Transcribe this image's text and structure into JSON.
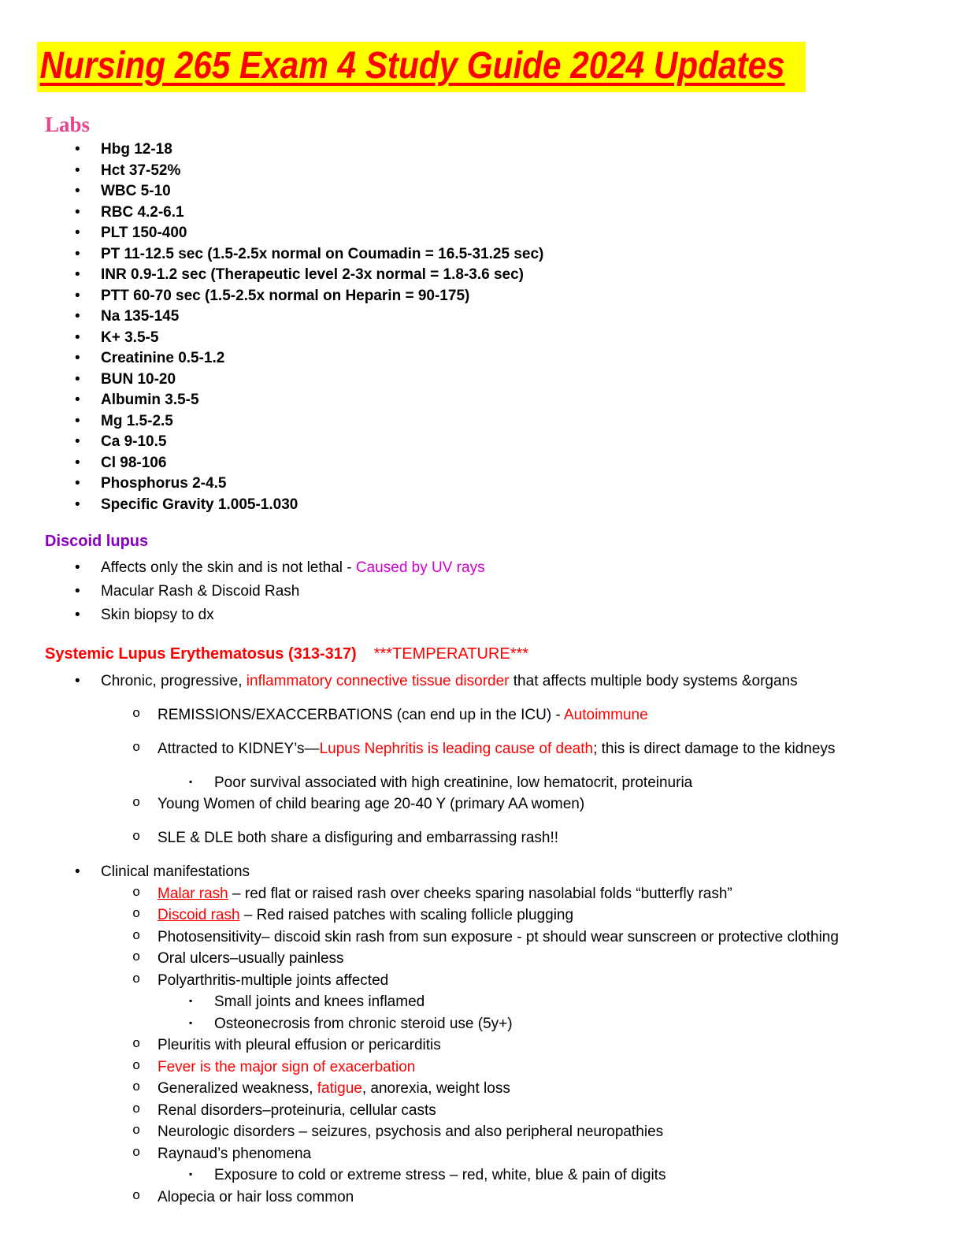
{
  "page": {
    "title": "Nursing 265 Exam 4 Study Guide 2024 Updates"
  },
  "colors": {
    "title_text": "#ff0000",
    "title_highlight": "#ffff00",
    "labs_heading": "#e8468c",
    "discoid_heading": "#8a00be",
    "magenta_accent": "#cc00cc",
    "red_accent": "#ff0000"
  },
  "sections": [
    {
      "id": "labs",
      "heading": [
        {
          "text": "Labs",
          "style": "pink-serif"
        }
      ],
      "items": [
        {
          "level": 1,
          "segments": [
            {
              "text": "Hbg 12-18"
            }
          ]
        },
        {
          "level": 1,
          "segments": [
            {
              "text": "Hct 37-52%"
            }
          ]
        },
        {
          "level": 1,
          "segments": [
            {
              "text": "WBC 5-10"
            }
          ]
        },
        {
          "level": 1,
          "segments": [
            {
              "text": "RBC 4.2-6.1"
            }
          ]
        },
        {
          "level": 1,
          "segments": [
            {
              "text": "PLT 150-400"
            }
          ]
        },
        {
          "level": 1,
          "segments": [
            {
              "text": "PT 11-12.5 sec (1.5-2.5x normal on Coumadin = 16.5-31.25 sec)"
            }
          ]
        },
        {
          "level": 1,
          "segments": [
            {
              "text": "INR 0.9-1.2 sec (Therapeutic level 2-3x normal = 1.8-3.6 sec)"
            }
          ]
        },
        {
          "level": 1,
          "segments": [
            {
              "text": "PTT 60-70 sec (1.5-2.5x normal on Heparin = 90-175)"
            }
          ]
        },
        {
          "level": 1,
          "segments": [
            {
              "text": "Na 135-145"
            }
          ]
        },
        {
          "level": 1,
          "segments": [
            {
              "text": "K+ 3.5-5"
            }
          ]
        },
        {
          "level": 1,
          "segments": [
            {
              "text": "Creatinine 0.5-1.2"
            }
          ]
        },
        {
          "level": 1,
          "segments": [
            {
              "text": "BUN 10-20"
            }
          ]
        },
        {
          "level": 1,
          "segments": [
            {
              "text": "Albumin 3.5-5"
            }
          ]
        },
        {
          "level": 1,
          "segments": [
            {
              "text": "Mg 1.5-2.5"
            }
          ]
        },
        {
          "level": 1,
          "segments": [
            {
              "text": "Ca 9-10.5"
            }
          ]
        },
        {
          "level": 1,
          "segments": [
            {
              "text": "Cl 98-106"
            }
          ]
        },
        {
          "level": 1,
          "segments": [
            {
              "text": "Phosphorus 2-4.5"
            }
          ]
        },
        {
          "level": 1,
          "segments": [
            {
              "text": "Specific Gravity 1.005-1.030"
            }
          ]
        }
      ]
    },
    {
      "id": "discoid-lupus",
      "heading": [
        {
          "text": "Discoid lupus",
          "style": "purple-b"
        }
      ],
      "items": [
        {
          "level": 1,
          "segments": [
            {
              "text": "Affects only the skin and is not lethal - "
            },
            {
              "text": "Caused by UV rays",
              "style": "magenta"
            }
          ]
        },
        {
          "level": 1,
          "segments": [
            {
              "text": "Macular Rash & Discoid Rash"
            }
          ]
        },
        {
          "level": 1,
          "segments": [
            {
              "text": "Skin biopsy to dx"
            }
          ]
        }
      ]
    },
    {
      "id": "sle",
      "heading": [
        {
          "text": "Systemic Lupus Erythematosus (313-317)",
          "style": "red-b"
        },
        {
          "text": "***TEMPERATURE***",
          "style": "red gap-left"
        }
      ],
      "items": [
        {
          "level": 1,
          "segments": [
            {
              "text": "Chronic, progressive, "
            },
            {
              "text": "inflammatory connective tissue disorder",
              "style": "red"
            },
            {
              "text": " that affects multiple body systems &organs"
            }
          ]
        },
        {
          "level": 2,
          "gap": true,
          "segments": [
            {
              "text": "REMISSIONS/EXACCERBATIONS (can end up in the ICU) - "
            },
            {
              "text": "Autoimmune",
              "style": "red"
            }
          ]
        },
        {
          "level": 2,
          "gap": true,
          "segments": [
            {
              "text": "Attracted to KIDNEY’s—"
            },
            {
              "text": "Lupus Nephritis is leading cause of death",
              "style": "red"
            },
            {
              "text": "; this is direct damage to the kidneys"
            }
          ]
        },
        {
          "level": 3,
          "gap": true,
          "segments": [
            {
              "text": "Poor survival associated with high creatinine, low hematocrit, proteinuria"
            }
          ]
        },
        {
          "level": 2,
          "segments": [
            {
              "text": "Young Women of child bearing age 20-40 Y (primary AA women)"
            }
          ]
        },
        {
          "level": 2,
          "gap": true,
          "segments": [
            {
              "text": "SLE & DLE both share a disfiguring and embarrassing rash!!"
            }
          ]
        },
        {
          "level": 1,
          "gap": true,
          "segments": [
            {
              "text": "Clinical manifestations"
            }
          ]
        },
        {
          "level": 2,
          "segments": [
            {
              "text": "Malar rash",
              "style": "red-u"
            },
            {
              "text": " – red flat or raised rash over cheeks sparing nasolabial folds “butterfly rash”"
            }
          ]
        },
        {
          "level": 2,
          "segments": [
            {
              "text": "Discoid rash",
              "style": "red-u"
            },
            {
              "text": " – Red raised patches with scaling follicle plugging"
            }
          ]
        },
        {
          "level": 2,
          "segments": [
            {
              "text": "Photosensitivity– discoid skin rash from sun exposure - pt should wear sunscreen or protective clothing"
            }
          ]
        },
        {
          "level": 2,
          "segments": [
            {
              "text": "Oral ulcers–usually painless"
            }
          ]
        },
        {
          "level": 2,
          "segments": [
            {
              "text": "Polyarthritis-multiple joints affected"
            }
          ]
        },
        {
          "level": 3,
          "segments": [
            {
              "text": "Small joints and knees inflamed"
            }
          ]
        },
        {
          "level": 3,
          "segments": [
            {
              "text": "Osteonecrosis from chronic steroid use (5y+)"
            }
          ]
        },
        {
          "level": 2,
          "segments": [
            {
              "text": "Pleuritis with pleural effusion or pericarditis"
            }
          ]
        },
        {
          "level": 2,
          "segments": [
            {
              "text": "Fever is the major sign of exacerbation",
              "style": "red"
            }
          ]
        },
        {
          "level": 2,
          "segments": [
            {
              "text": "Generalized weakness, "
            },
            {
              "text": "fatigue",
              "style": "red"
            },
            {
              "text": ", anorexia, weight loss"
            }
          ]
        },
        {
          "level": 2,
          "segments": [
            {
              "text": "Renal disorders–proteinuria, cellular casts"
            }
          ]
        },
        {
          "level": 2,
          "segments": [
            {
              "text": "Neurologic disorders – seizures, psychosis and also peripheral neuropathies"
            }
          ]
        },
        {
          "level": 2,
          "segments": [
            {
              "text": "Raynaud’s phenomena"
            }
          ]
        },
        {
          "level": 3,
          "segments": [
            {
              "text": "Exposure to cold or extreme stress – red, white, blue & pain of digits"
            }
          ]
        },
        {
          "level": 2,
          "segments": [
            {
              "text": "Alopecia or hair loss common"
            }
          ]
        }
      ]
    }
  ]
}
